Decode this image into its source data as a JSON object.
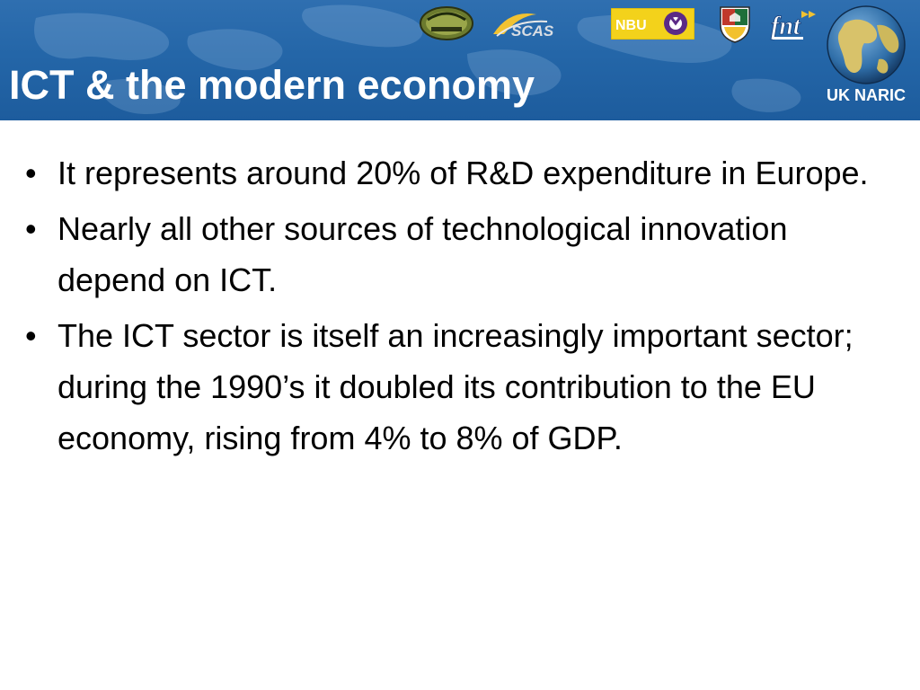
{
  "slide": {
    "title": "ICT & the modern economy",
    "bullets": [
      "It represents around 20% of R&D expenditure in Europe.",
      "Nearly all other sources of technological innovation depend on ICT.",
      "The ICT sector is itself an increasingly important sector; during the 1990’s it doubled its contribution to the EU economy, rising from 4% to 8% of GDP."
    ],
    "bullet_glyph": "•"
  },
  "header": {
    "logos": {
      "scas": "SCAS",
      "nbu": "NBU",
      "fnt": "fnt",
      "uk_naric": "UK NARIC"
    }
  },
  "colors": {
    "header_blue": "#2466a8",
    "title_text": "#ffffff",
    "body_text": "#000000",
    "nbu_yellow": "#f3d21b",
    "nbu_purple": "#5b2a86"
  }
}
